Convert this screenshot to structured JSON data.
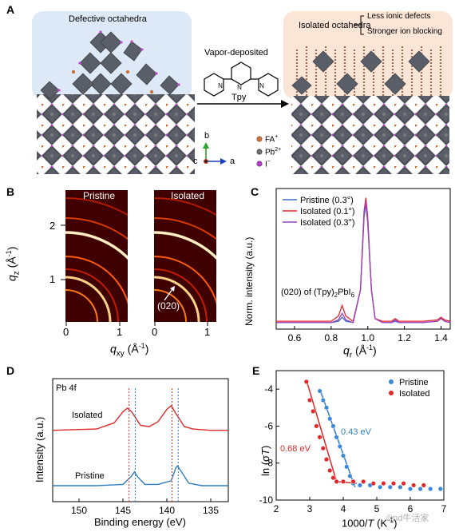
{
  "panels": {
    "A": {
      "letter": "A",
      "left_label": "Defective octahedra",
      "right_label": "Isolated octahedra",
      "bullets": [
        "Less ionic defects",
        "Stronger ion blocking"
      ],
      "arrow_label": "Vapor-deposited",
      "molecule_label": "Tpy",
      "axes": {
        "b": "b",
        "c": "c",
        "a": "a"
      },
      "legend": [
        {
          "label": "FA",
          "sup": "+",
          "color": "#c8733a"
        },
        {
          "label": "Pb",
          "sup": "2+",
          "color": "#6e6e6e"
        },
        {
          "label": "I",
          "sup": "−",
          "color": "#b040c8"
        }
      ]
    },
    "B": {
      "letter": "B",
      "images": [
        "Pristine",
        "Isolated"
      ],
      "annotation": "(020)",
      "ylabel_main": "q",
      "ylabel_sub": "z",
      "ylabel_unit": " (Å",
      "ylabel_unit_sup": "-1",
      "ylabel_close": ")",
      "xlabel_main": "q",
      "xlabel_sub": "xy",
      "xlabel_unit": " (Å",
      "xlabel_unit_sup": "-1",
      "xlabel_close": ")",
      "yticks": [
        "2",
        "1"
      ],
      "xticks_left": [
        "0",
        "1"
      ],
      "xticks_right": [
        "0",
        "1"
      ]
    },
    "C": {
      "letter": "C",
      "ylabel": "Norm. intensity (a.u.)",
      "xlabel_main": "q",
      "xlabel_sub": "r",
      "xlabel_unit": " (Å",
      "xlabel_unit_sup": "-1",
      "xlabel_close": ")",
      "annotation_pre": "(020) of (Tpy)",
      "annotation_sub1": "2",
      "annotation_mid": "PbI",
      "annotation_sub2": "6"
    },
    "D": {
      "letter": "D",
      "title": "Pb 4f",
      "ylabel": "Intensity (a.u.)",
      "xlabel": "Binding energy (eV)"
    },
    "E": {
      "letter": "E",
      "ylabel_main": "ln (σ",
      "ylabel_var": "T",
      "ylabel_close": ")",
      "xlabel_main": "1000/",
      "xlabel_var": "T",
      "xlabel_unit": " (K",
      "xlabel_unit_sup": "-1",
      "xlabel_close": ")",
      "ann_isolated": "0.68 eV",
      "ann_pristine": "0.43 eV",
      "watermark": "©nd牛活家"
    }
  },
  "chart_data": [
    {
      "panel": "C",
      "type": "line",
      "xlim": [
        0.5,
        1.45
      ],
      "ylim": [
        0,
        1.07
      ],
      "xticks": [
        0.6,
        0.8,
        1.0,
        1.2,
        1.4
      ],
      "series": [
        {
          "name": "Pristine (0.3°)",
          "color": "#3a6fc8",
          "x": [
            0.5,
            0.8,
            0.84,
            0.86,
            0.88,
            0.92,
            0.96,
            0.98,
            0.99,
            1.0,
            1.02,
            1.04,
            1.08,
            1.13,
            1.15,
            1.17,
            1.3,
            1.38,
            1.4,
            1.42,
            1.45
          ],
          "y": [
            0.05,
            0.05,
            0.06,
            0.09,
            0.06,
            0.05,
            0.3,
            0.85,
            0.95,
            0.8,
            0.3,
            0.08,
            0.05,
            0.05,
            0.06,
            0.05,
            0.05,
            0.06,
            0.08,
            0.06,
            0.05
          ]
        },
        {
          "name": "Isolated (0.1°)",
          "color": "#e0282a",
          "x": [
            0.5,
            0.8,
            0.84,
            0.86,
            0.88,
            0.92,
            0.96,
            0.98,
            0.99,
            1.0,
            1.02,
            1.04,
            1.08,
            1.13,
            1.15,
            1.17,
            1.3,
            1.38,
            1.4,
            1.42,
            1.45
          ],
          "y": [
            0.06,
            0.06,
            0.1,
            0.18,
            0.1,
            0.06,
            0.3,
            0.9,
            1.0,
            0.85,
            0.3,
            0.08,
            0.06,
            0.06,
            0.08,
            0.06,
            0.06,
            0.07,
            0.09,
            0.07,
            0.06
          ]
        },
        {
          "name": "Isolated (0.3°)",
          "color": "#a040c0",
          "x": [
            0.5,
            0.8,
            0.84,
            0.86,
            0.88,
            0.92,
            0.96,
            0.98,
            0.99,
            1.0,
            1.02,
            1.04,
            1.08,
            1.13,
            1.15,
            1.17,
            1.3,
            1.38,
            1.4,
            1.42,
            1.45
          ],
          "y": [
            0.05,
            0.05,
            0.07,
            0.12,
            0.07,
            0.05,
            0.3,
            0.88,
            0.97,
            0.82,
            0.3,
            0.08,
            0.05,
            0.05,
            0.07,
            0.05,
            0.05,
            0.06,
            0.08,
            0.06,
            0.05
          ]
        }
      ]
    },
    {
      "panel": "D",
      "type": "line",
      "xlim": [
        153,
        133
      ],
      "ylim": [
        0,
        1
      ],
      "xticks": [
        150,
        145,
        140,
        135
      ],
      "series": [
        {
          "name": "Isolated",
          "color": "#e0282a",
          "x": [
            153,
            148,
            146,
            145,
            144.5,
            144,
            143,
            142,
            141,
            140,
            139.5,
            139,
            138,
            137,
            135,
            133
          ],
          "y": [
            0.58,
            0.59,
            0.64,
            0.73,
            0.76,
            0.73,
            0.62,
            0.61,
            0.65,
            0.75,
            0.78,
            0.72,
            0.61,
            0.59,
            0.58,
            0.58
          ]
        },
        {
          "name": "Pristine",
          "color": "#2f7cc0",
          "x": [
            153,
            148,
            145,
            144,
            143.7,
            143.3,
            142.5,
            141,
            139.5,
            139,
            138.8,
            138.4,
            137.5,
            136,
            133
          ],
          "y": [
            0.13,
            0.13,
            0.14,
            0.21,
            0.24,
            0.2,
            0.14,
            0.14,
            0.17,
            0.27,
            0.29,
            0.25,
            0.15,
            0.13,
            0.13
          ]
        }
      ],
      "markers": [
        144.3,
        143.6,
        139.4,
        138.7
      ]
    },
    {
      "panel": "E",
      "type": "scatter",
      "xlim": [
        2,
        7
      ],
      "ylim": [
        -10,
        -3
      ],
      "xticks": [
        2,
        3,
        4,
        5,
        6,
        7
      ],
      "yticks": [
        -4,
        -6,
        -8,
        -10
      ],
      "series": [
        {
          "name": "Pristine",
          "color": "#3a88d8",
          "x": [
            3.3,
            3.4,
            3.5,
            3.6,
            3.7,
            3.8,
            3.9,
            4.0,
            4.1,
            4.2,
            4.3,
            4.5,
            4.8,
            5.1,
            5.4,
            5.7,
            6.0,
            6.3,
            6.6,
            6.9
          ],
          "y": [
            -4.1,
            -4.6,
            -5.0,
            -5.6,
            -6.0,
            -6.6,
            -7.1,
            -7.6,
            -8.2,
            -8.7,
            -9.1,
            -9.2,
            -9.2,
            -9.3,
            -9.3,
            -9.3,
            -9.4,
            -9.4,
            -9.4,
            -9.4
          ]
        },
        {
          "name": "Isolated",
          "color": "#e0282a",
          "x": [
            2.9,
            3.0,
            3.1,
            3.2,
            3.3,
            3.4,
            3.5,
            3.6,
            3.7,
            3.8,
            4.0,
            4.3,
            4.6,
            4.9,
            5.2,
            5.5,
            5.8,
            6.1,
            6.4
          ],
          "y": [
            -3.6,
            -4.6,
            -5.2,
            -6.0,
            -6.6,
            -7.2,
            -7.8,
            -8.4,
            -8.8,
            -9.0,
            -9.0,
            -9.0,
            -9.0,
            -9.1,
            -9.1,
            -9.1,
            -9.1,
            -9.2,
            -9.2
          ]
        }
      ]
    }
  ]
}
